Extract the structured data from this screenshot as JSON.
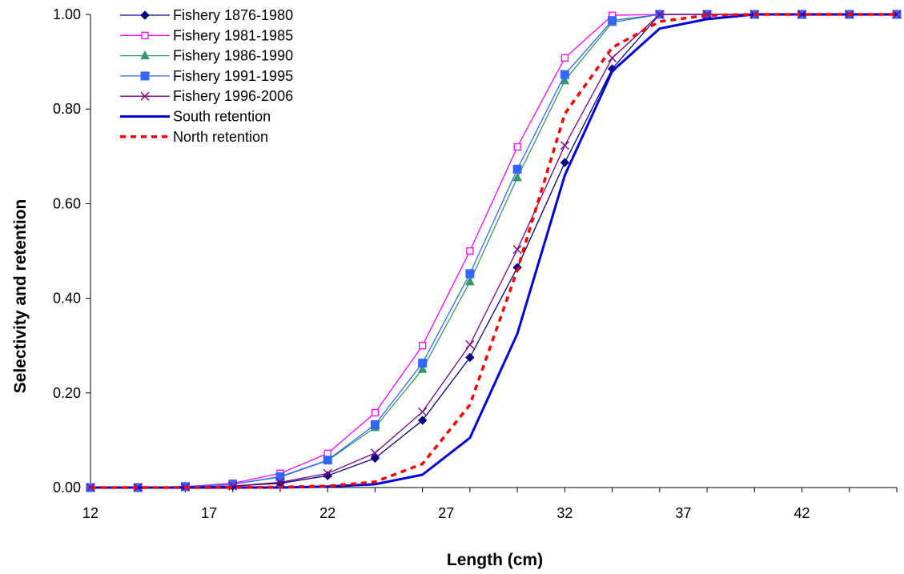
{
  "chart_data": {
    "type": "line",
    "xlabel": "Length (cm)",
    "ylabel": "Selectivity and retention",
    "xlim": [
      12,
      46
    ],
    "ylim": [
      0,
      1
    ],
    "x_ticks": [
      12,
      17,
      22,
      27,
      32,
      37,
      42
    ],
    "x_tick_labels": [
      "12",
      "17",
      "22",
      "27",
      "32",
      "37",
      "42"
    ],
    "y_ticks": [
      0,
      0.2,
      0.4,
      0.6,
      0.8,
      1.0
    ],
    "y_tick_labels": [
      "0.00",
      "0.20",
      "0.40",
      "0.60",
      "0.80",
      "1.00"
    ],
    "grid": false,
    "legend_position": "top-left",
    "x": [
      12,
      14,
      16,
      18,
      20,
      22,
      24,
      26,
      28,
      30,
      32,
      34,
      36,
      38,
      40,
      42,
      44,
      46
    ],
    "series": [
      {
        "name": "Fishery 1876-1980",
        "color": "#000080",
        "marker": "diamond",
        "line_style": "solid",
        "line_width": 1.3,
        "values": [
          0,
          0,
          0.001,
          0.003,
          0.009,
          0.025,
          0.062,
          0.142,
          0.275,
          0.465,
          0.687,
          0.885,
          1.0,
          1.0,
          1.0,
          1.0,
          1.0,
          1.0
        ]
      },
      {
        "name": "Fishery 1981-1985",
        "color": "#ff00ff",
        "marker": "open-square",
        "line_style": "solid",
        "line_width": 1.3,
        "values": [
          0,
          0,
          0.002,
          0.009,
          0.03,
          0.072,
          0.158,
          0.3,
          0.5,
          0.72,
          0.908,
          0.998,
          1.0,
          1.0,
          1.0,
          1.0,
          1.0,
          1.0
        ]
      },
      {
        "name": "Fishery 1986-1990",
        "color": "#339966",
        "marker": "triangle",
        "line_style": "solid",
        "line_width": 1.3,
        "values": [
          0,
          0,
          0.002,
          0.007,
          0.022,
          0.057,
          0.127,
          0.25,
          0.435,
          0.655,
          0.86,
          0.983,
          1.0,
          1.0,
          1.0,
          1.0,
          1.0,
          1.0
        ]
      },
      {
        "name": "Fishery 1991-1995",
        "color": "#3366ff",
        "marker": "square",
        "line_style": "solid",
        "line_width": 1.3,
        "values": [
          0,
          0,
          0.002,
          0.007,
          0.023,
          0.058,
          0.133,
          0.263,
          0.452,
          0.673,
          0.873,
          0.987,
          1.0,
          1.0,
          1.0,
          1.0,
          1.0,
          1.0
        ]
      },
      {
        "name": "Fishery 1996-2006",
        "color": "#800080",
        "marker": "x",
        "line_style": "solid",
        "line_width": 1.3,
        "values": [
          0,
          0,
          0.001,
          0.003,
          0.011,
          0.03,
          0.073,
          0.16,
          0.302,
          0.503,
          0.723,
          0.908,
          1.0,
          1.0,
          1.0,
          1.0,
          1.0,
          1.0
        ]
      },
      {
        "name": "South retention",
        "color": "#0000dd",
        "marker": "none",
        "line_style": "solid",
        "line_width": 3,
        "values": [
          0,
          0,
          0,
          0,
          0,
          0.002,
          0.007,
          0.027,
          0.105,
          0.325,
          0.66,
          0.88,
          0.97,
          0.99,
          1.0,
          1.0,
          1.0,
          1.0
        ]
      },
      {
        "name": "North retention",
        "color": "#ff0000",
        "marker": "none",
        "line_style": "dashed",
        "line_width": 3.5,
        "values": [
          0,
          0,
          0,
          0,
          0.001,
          0.003,
          0.012,
          0.05,
          0.175,
          0.46,
          0.79,
          0.93,
          0.985,
          0.998,
          1.0,
          1.0,
          1.0,
          1.0
        ]
      }
    ]
  }
}
